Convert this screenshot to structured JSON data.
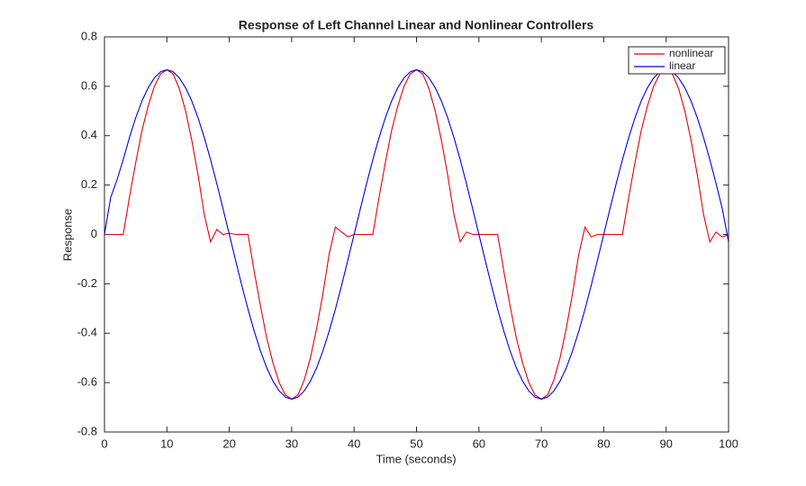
{
  "chart_data": {
    "type": "line",
    "title": "Response of Left Channel Linear and Nonlinear Controllers",
    "xlabel": "Time (seconds)",
    "ylabel": "Response",
    "x": [
      0,
      1,
      2,
      3,
      4,
      5,
      6,
      7,
      8,
      9,
      10,
      11,
      12,
      13,
      14,
      15,
      16,
      17,
      18,
      19,
      20,
      21,
      22,
      23,
      24,
      25,
      26,
      27,
      28,
      29,
      30,
      31,
      32,
      33,
      34,
      35,
      36,
      37,
      38,
      39,
      40,
      41,
      42,
      43,
      44,
      45,
      46,
      47,
      48,
      49,
      50,
      51,
      52,
      53,
      54,
      55,
      56,
      57,
      58,
      59,
      60,
      61,
      62,
      63,
      64,
      65,
      66,
      67,
      68,
      69,
      70,
      71,
      72,
      73,
      74,
      75,
      76,
      77,
      78,
      79,
      80,
      81,
      82,
      83,
      84,
      85,
      86,
      87,
      88,
      89,
      90,
      91,
      92,
      93,
      94,
      95,
      96,
      97,
      98,
      99,
      100
    ],
    "series": [
      {
        "name": "nonlinear",
        "color": "#e8000b",
        "values": [
          0,
          0,
          0,
          0,
          0.15,
          0.29,
          0.42,
          0.52,
          0.6,
          0.65,
          0.667,
          0.65,
          0.59,
          0.5,
          0.38,
          0.24,
          0.08,
          -0.03,
          0.02,
          0,
          0.005,
          0,
          0,
          0,
          -0.15,
          -0.29,
          -0.42,
          -0.52,
          -0.6,
          -0.65,
          -0.667,
          -0.65,
          -0.59,
          -0.5,
          -0.38,
          -0.24,
          -0.08,
          0.03,
          0.01,
          -0.01,
          0,
          0,
          0,
          0,
          0.15,
          0.29,
          0.42,
          0.52,
          0.6,
          0.65,
          0.667,
          0.65,
          0.59,
          0.5,
          0.38,
          0.24,
          0.08,
          -0.03,
          0.01,
          0,
          0,
          0,
          0,
          0,
          -0.15,
          -0.29,
          -0.42,
          -0.52,
          -0.6,
          -0.65,
          -0.667,
          -0.65,
          -0.59,
          -0.5,
          -0.38,
          -0.24,
          -0.08,
          0.03,
          -0.01,
          0,
          0,
          0,
          0,
          0,
          0.15,
          0.29,
          0.42,
          0.52,
          0.6,
          0.65,
          0.667,
          0.65,
          0.59,
          0.5,
          0.38,
          0.24,
          0.08,
          -0.03,
          0.01,
          -0.01,
          0
        ]
      },
      {
        "name": "linear",
        "color": "#0000e6",
        "values": [
          0,
          0.15,
          0.22,
          0.303,
          0.392,
          0.472,
          0.54,
          0.594,
          0.634,
          0.659,
          0.667,
          0.659,
          0.634,
          0.594,
          0.54,
          0.472,
          0.392,
          0.303,
          0.206,
          0.104,
          0,
          -0.104,
          -0.206,
          -0.303,
          -0.392,
          -0.472,
          -0.54,
          -0.594,
          -0.634,
          -0.659,
          -0.667,
          -0.659,
          -0.634,
          -0.594,
          -0.54,
          -0.472,
          -0.392,
          -0.303,
          -0.206,
          -0.104,
          0,
          0.104,
          0.206,
          0.303,
          0.392,
          0.472,
          0.54,
          0.594,
          0.634,
          0.659,
          0.667,
          0.659,
          0.634,
          0.594,
          0.54,
          0.472,
          0.392,
          0.303,
          0.206,
          0.104,
          0,
          -0.104,
          -0.206,
          -0.303,
          -0.392,
          -0.472,
          -0.54,
          -0.594,
          -0.634,
          -0.659,
          -0.667,
          -0.659,
          -0.634,
          -0.594,
          -0.54,
          -0.472,
          -0.392,
          -0.303,
          -0.206,
          -0.104,
          0,
          0.104,
          0.206,
          0.303,
          0.392,
          0.472,
          0.54,
          0.594,
          0.634,
          0.659,
          0.667,
          0.659,
          0.634,
          0.594,
          0.54,
          0.472,
          0.392,
          0.303,
          0.206,
          0.104,
          -0.03
        ]
      }
    ],
    "xlim": [
      0,
      100
    ],
    "xticks": [
      0,
      10,
      20,
      30,
      40,
      50,
      60,
      70,
      80,
      90,
      100
    ],
    "ylim": [
      -0.8,
      0.8
    ],
    "yticks": [
      -0.8,
      -0.6,
      -0.4,
      -0.2,
      0,
      0.2,
      0.4,
      0.6,
      0.8
    ],
    "legend": "upper right"
  }
}
